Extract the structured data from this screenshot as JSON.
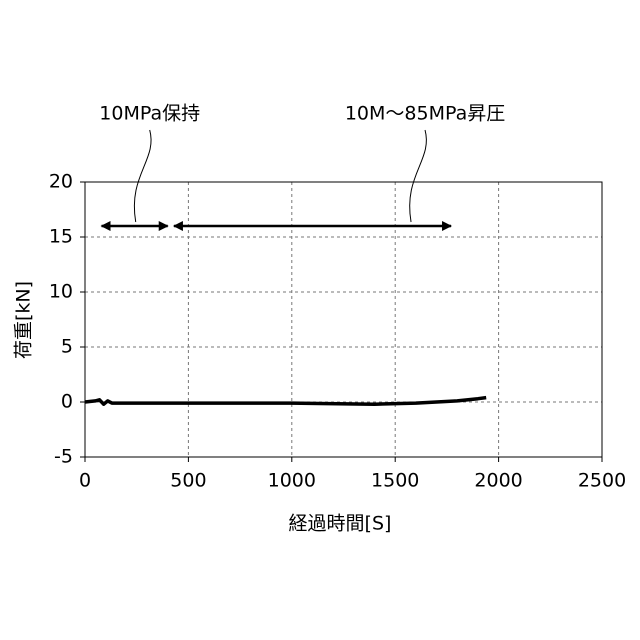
{
  "chart_data": {
    "type": "line",
    "xlabel": "経過時間[S]",
    "ylabel": "荷重[kN]",
    "x": [
      0,
      50,
      70,
      90,
      110,
      130,
      200,
      500,
      1000,
      1400,
      1600,
      1800,
      1900,
      1940
    ],
    "series": [
      {
        "color": "#000000",
        "values": [
          0,
          0.1,
          0.2,
          -0.2,
          0.1,
          -0.1,
          -0.1,
          -0.1,
          -0.1,
          -0.2,
          -0.1,
          0.1,
          0.3,
          0.4
        ]
      }
    ],
    "xlim": [
      0,
      2500
    ],
    "xticks": [
      0,
      500,
      1000,
      1500,
      2000,
      2500
    ],
    "ylim": [
      -5,
      20
    ],
    "yticks": [
      -5,
      0,
      5,
      10,
      15,
      20
    ],
    "grid": true,
    "annotations": [
      {
        "text": "10MPa保持",
        "x": [
          80,
          400
        ],
        "y": 16
      },
      {
        "text": "10M～85MPa昇圧",
        "x": [
          430,
          1770
        ],
        "y": 16
      }
    ]
  }
}
